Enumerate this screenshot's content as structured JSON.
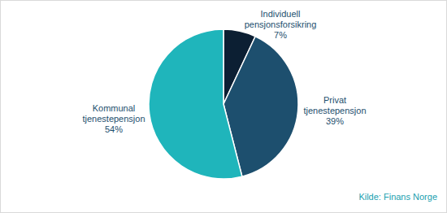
{
  "chart_data": {
    "type": "pie",
    "categories": [
      "Individuell pensjonsforsikring",
      "Privat tjenestepensjon",
      "Kommunal tjenestepensjon"
    ],
    "values": [
      7,
      39,
      54
    ],
    "value_labels": [
      "7%",
      "39%",
      "54%"
    ],
    "colors": [
      "#0c1f33",
      "#1d4f6e",
      "#1fb5bb"
    ],
    "data_labels": true,
    "source": "Kilde: Finans Norge"
  }
}
